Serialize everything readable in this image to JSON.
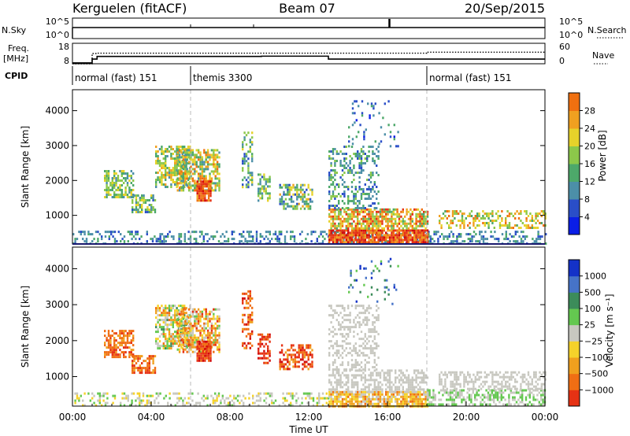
{
  "header": {
    "station": "Kerguelen (fitACF)",
    "beam": "Beam 07",
    "date": "20/Sep/2015"
  },
  "time_axis": {
    "label": "Time UT",
    "ticks": [
      "00:00",
      "04:00",
      "08:00",
      "12:00",
      "16:00",
      "20:00",
      "00:00"
    ],
    "range_hours": [
      0,
      24
    ]
  },
  "strip_labels": {
    "nsky": "N.Sky",
    "nsky_ticks": [
      "10^5",
      "10^0"
    ],
    "nsearch": "N.Search",
    "nsearch_ticks": [
      "10^5",
      "10^0"
    ],
    "freq": "Freq.",
    "freq_unit": "[MHz]",
    "freq_ticks": [
      "18",
      "8"
    ],
    "nave": "Nave",
    "nave_ticks": [
      "60",
      "0"
    ],
    "cpid": "CPID"
  },
  "cpid_segments": [
    {
      "start": 0.0,
      "end": 6.0,
      "label": "normal (fast) 151"
    },
    {
      "start": 6.0,
      "end": 18.0,
      "label": "themis 3300"
    },
    {
      "start": 18.0,
      "end": 24.0,
      "label": "normal (fast) 151"
    }
  ],
  "freq_trace": [
    [
      0,
      8.4
    ],
    [
      1.0,
      8.4
    ],
    [
      1.0,
      10.3
    ],
    [
      1.25,
      10.3
    ],
    [
      1.25,
      11.6
    ],
    [
      9.6,
      11.6
    ],
    [
      9.6,
      11.7
    ],
    [
      13.0,
      11.7
    ],
    [
      13.0,
      10.3
    ],
    [
      24,
      10.3
    ]
  ],
  "nave_trace": [
    [
      0,
      0
    ],
    [
      1.0,
      0
    ],
    [
      1.0,
      30
    ],
    [
      1.25,
      30
    ],
    [
      1.25,
      31
    ],
    [
      18,
      31
    ],
    [
      18,
      34
    ],
    [
      24,
      34
    ]
  ],
  "power_panel": {
    "ylabel": "Slant Range [km]",
    "yticks": [
      1000,
      2000,
      3000,
      4000
    ],
    "colorbar_label": "Power [dB]",
    "colorbar_ticks": [
      "4",
      "8",
      "12",
      "16",
      "20",
      "24",
      "28"
    ]
  },
  "velocity_panel": {
    "ylabel": "Slant Range [km]",
    "yticks": [
      1000,
      2000,
      3000,
      4000
    ],
    "colorbar_label": "Velocity [m s⁻¹]",
    "colorbar_ticks": [
      "1000",
      "500",
      "100",
      "25",
      "−25",
      "−100",
      "−500",
      "−1000"
    ]
  },
  "chart_data": {
    "type": "heatmap",
    "x_range": [
      0,
      24
    ],
    "y_range": [
      180,
      4600
    ],
    "power_colors": [
      "#0a1ee6",
      "#2a4ec8",
      "#4c8fa8",
      "#4da86a",
      "#8cc84a",
      "#e6d22a",
      "#f0a020",
      "#f07010",
      "#e63214",
      "#d20a0a"
    ],
    "velocity_colors": [
      "#1432c8",
      "#4673c8",
      "#3c8c5a",
      "#64c850",
      "#c8c8c0",
      "#f5d22a",
      "#f0a01e",
      "#f06e14",
      "#e63214",
      "#d20a0a"
    ],
    "power_features": [
      {
        "t0": 0.0,
        "t1": 24.0,
        "r0": 200,
        "r1": 560,
        "lv": [
          1,
          3
        ],
        "p": 0.35
      },
      {
        "t0": 1.6,
        "t1": 3.1,
        "r0": 1550,
        "r1": 2300,
        "lv": [
          2,
          5
        ],
        "p": 0.65
      },
      {
        "t0": 3.0,
        "t1": 4.2,
        "r0": 1100,
        "r1": 1600,
        "lv": [
          1,
          5
        ],
        "p": 0.6
      },
      {
        "t0": 4.2,
        "t1": 6.0,
        "r0": 1800,
        "r1": 3000,
        "lv": [
          2,
          6
        ],
        "p": 0.62
      },
      {
        "t0": 5.3,
        "t1": 7.5,
        "r0": 1700,
        "r1": 2900,
        "lv": [
          2,
          7
        ],
        "p": 0.66
      },
      {
        "t0": 6.3,
        "t1": 7.0,
        "r0": 1450,
        "r1": 2000,
        "lv": [
          6,
          9
        ],
        "p": 0.85
      },
      {
        "t0": 8.6,
        "t1": 9.1,
        "r0": 1800,
        "r1": 3400,
        "lv": [
          1,
          5
        ],
        "p": 0.45
      },
      {
        "t0": 9.4,
        "t1": 10.0,
        "r0": 1400,
        "r1": 2200,
        "lv": [
          1,
          5
        ],
        "p": 0.5
      },
      {
        "t0": 10.5,
        "t1": 12.2,
        "r0": 1200,
        "r1": 1900,
        "lv": [
          1,
          6
        ],
        "p": 0.55
      },
      {
        "t0": 13.0,
        "t1": 18.0,
        "r0": 200,
        "r1": 600,
        "lv": [
          6,
          9
        ],
        "p": 0.9
      },
      {
        "t0": 13.0,
        "t1": 18.0,
        "r0": 600,
        "r1": 1200,
        "lv": [
          3,
          8
        ],
        "p": 0.7
      },
      {
        "t0": 13.0,
        "t1": 15.5,
        "r0": 1200,
        "r1": 3000,
        "lv": [
          1,
          4
        ],
        "p": 0.32
      },
      {
        "t0": 14.0,
        "t1": 16.5,
        "r0": 3000,
        "r1": 4300,
        "lv": [
          0,
          3
        ],
        "p": 0.12
      },
      {
        "t0": 18.6,
        "t1": 24.0,
        "r0": 650,
        "r1": 1150,
        "lv": [
          3,
          7
        ],
        "p": 0.45
      }
    ],
    "velocity_features": [
      {
        "t0": 0.0,
        "t1": 13.0,
        "r0": 200,
        "r1": 560,
        "lv": [
          3,
          5
        ],
        "p": 0.3
      },
      {
        "t0": 1.6,
        "t1": 3.1,
        "r0": 1550,
        "r1": 2300,
        "lv": [
          6,
          8
        ],
        "p": 0.65
      },
      {
        "t0": 3.0,
        "t1": 4.2,
        "r0": 1100,
        "r1": 1600,
        "lv": [
          6,
          8
        ],
        "p": 0.6
      },
      {
        "t0": 4.2,
        "t1": 6.0,
        "r0": 1800,
        "r1": 3000,
        "lv": [
          2,
          7
        ],
        "p": 0.62
      },
      {
        "t0": 5.3,
        "t1": 7.5,
        "r0": 1700,
        "r1": 2900,
        "lv": [
          3,
          8
        ],
        "p": 0.66
      },
      {
        "t0": 6.3,
        "t1": 7.0,
        "r0": 1450,
        "r1": 2000,
        "lv": [
          7,
          9
        ],
        "p": 0.85
      },
      {
        "t0": 8.6,
        "t1": 9.1,
        "r0": 1800,
        "r1": 3400,
        "lv": [
          6,
          9
        ],
        "p": 0.45
      },
      {
        "t0": 9.4,
        "t1": 10.0,
        "r0": 1400,
        "r1": 2200,
        "lv": [
          7,
          9
        ],
        "p": 0.5
      },
      {
        "t0": 10.5,
        "t1": 12.2,
        "r0": 1200,
        "r1": 1900,
        "lv": [
          6,
          9
        ],
        "p": 0.55
      },
      {
        "t0": 13.0,
        "t1": 18.0,
        "r0": 200,
        "r1": 600,
        "lv": [
          4,
          7
        ],
        "p": 0.85
      },
      {
        "t0": 13.0,
        "t1": 18.0,
        "r0": 600,
        "r1": 1200,
        "lv": [
          4,
          4
        ],
        "p": 0.55
      },
      {
        "t0": 13.0,
        "t1": 15.5,
        "r0": 1200,
        "r1": 3000,
        "lv": [
          4,
          4
        ],
        "p": 0.35
      },
      {
        "t0": 14.0,
        "t1": 16.5,
        "r0": 3000,
        "r1": 4300,
        "lv": [
          0,
          3
        ],
        "p": 0.1
      },
      {
        "t0": 18.0,
        "t1": 24.0,
        "r0": 200,
        "r1": 650,
        "lv": [
          3,
          4
        ],
        "p": 0.5
      },
      {
        "t0": 18.6,
        "t1": 24.0,
        "r0": 650,
        "r1": 1150,
        "lv": [
          4,
          4
        ],
        "p": 0.45
      }
    ]
  }
}
